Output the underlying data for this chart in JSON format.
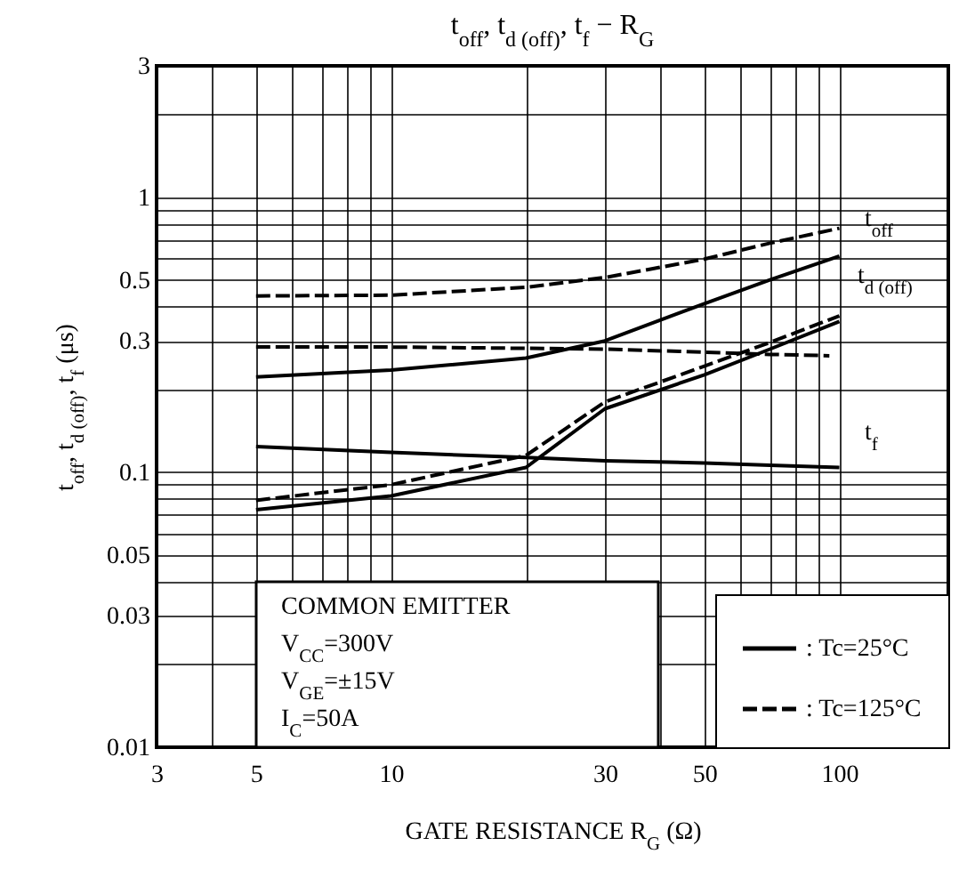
{
  "chart_data": {
    "type": "line",
    "title": "t$_{off}$, t$_{d (off)}$, t$_{f}$ − R$_{G}$",
    "xlabel": "GATE RESISTANCE   R$_{G}$   (Ω)",
    "ylabel": "t$_{off}$, t$_{d (off)}$, t$_{f}$   (μs)",
    "log": "xy",
    "grid": true,
    "legend": "bottom right",
    "marker": "none",
    "xlim": [
      3,
      175
    ],
    "ylim": [
      0.01,
      3
    ],
    "xticks": [
      3,
      {
        "value": 4,
        "label": null
      },
      5,
      {
        "value": 6,
        "label": null
      },
      {
        "value": 7,
        "label": null
      },
      {
        "value": 8,
        "label": null
      },
      {
        "value": 9,
        "label": null
      },
      10,
      {
        "value": 20,
        "label": null
      },
      30,
      {
        "value": 40,
        "label": null
      },
      50,
      {
        "value": 60,
        "label": null
      },
      {
        "value": 70,
        "label": null
      },
      {
        "value": 80,
        "label": null
      },
      {
        "value": 90,
        "label": null
      },
      100
    ],
    "yticks": [
      0.01,
      {
        "value": 0.02,
        "label": null
      },
      0.03,
      {
        "value": 0.04,
        "label": null
      },
      0.05,
      {
        "value": 0.06,
        "label": null
      },
      {
        "value": 0.07,
        "label": null
      },
      {
        "value": 0.08,
        "label": null
      },
      {
        "value": 0.09,
        "label": null
      },
      0.1,
      {
        "value": 0.2,
        "label": null
      },
      0.3,
      {
        "value": 0.4,
        "label": null
      },
      0.5,
      {
        "value": 0.6,
        "label": null
      },
      {
        "value": 0.7,
        "label": null
      },
      {
        "value": 0.8,
        "label": null
      },
      {
        "value": 0.9,
        "label": null
      },
      1,
      {
        "value": 2,
        "label": null
      },
      3
    ],
    "series": [
      {
        "name": ": Tc=25°C",
        "color": "#000000",
        "line_style": "solid",
        "x": [
          5,
          10,
          20,
          30,
          50,
          70,
          100
        ],
        "values": [
          0.222,
          0.235,
          0.26,
          0.3,
          0.41,
          0.5,
          0.61
        ]
      },
      {
        "name": ": Tc=125°C",
        "color": "#000000",
        "line_style": "dashed",
        "x": [
          5,
          10,
          20,
          30,
          50,
          70,
          100
        ],
        "values": [
          0.437,
          0.44,
          0.47,
          0.51,
          0.595,
          0.68,
          0.77
        ]
      },
      {
        "color": "#000000",
        "line_style": "solid",
        "x": [
          5,
          10,
          20,
          30,
          50,
          70,
          100
        ],
        "values": [
          0.124,
          0.118,
          0.113,
          0.11,
          0.108,
          0.106,
          0.104
        ]
      },
      {
        "color": "#000000",
        "line_style": "dashed",
        "x": [
          5,
          10,
          20,
          30,
          50,
          70,
          95
        ],
        "values": [
          0.285,
          0.285,
          0.282,
          0.28,
          0.273,
          0.268,
          0.265
        ]
      },
      {
        "color": "#000000",
        "line_style": "solid",
        "x": [
          5,
          10,
          20,
          30,
          50,
          70,
          100
        ],
        "values": [
          0.073,
          0.082,
          0.104,
          0.17,
          0.226,
          0.28,
          0.353
        ]
      },
      {
        "color": "#000000",
        "line_style": "dashed",
        "x": [
          5,
          10,
          20,
          30,
          50,
          70,
          100
        ],
        "values": [
          0.079,
          0.09,
          0.115,
          0.18,
          0.243,
          0.296,
          0.37
        ]
      }
    ],
    "annotations": [
      "t$_{off}$",
      "t$_{d (off)}$",
      "t$_{f}$",
      "COMMON EMITTER",
      "V$_{CC}$=300V",
      "V$_{GE}$=±15V",
      "I$_{C}$=50A"
    ]
  }
}
